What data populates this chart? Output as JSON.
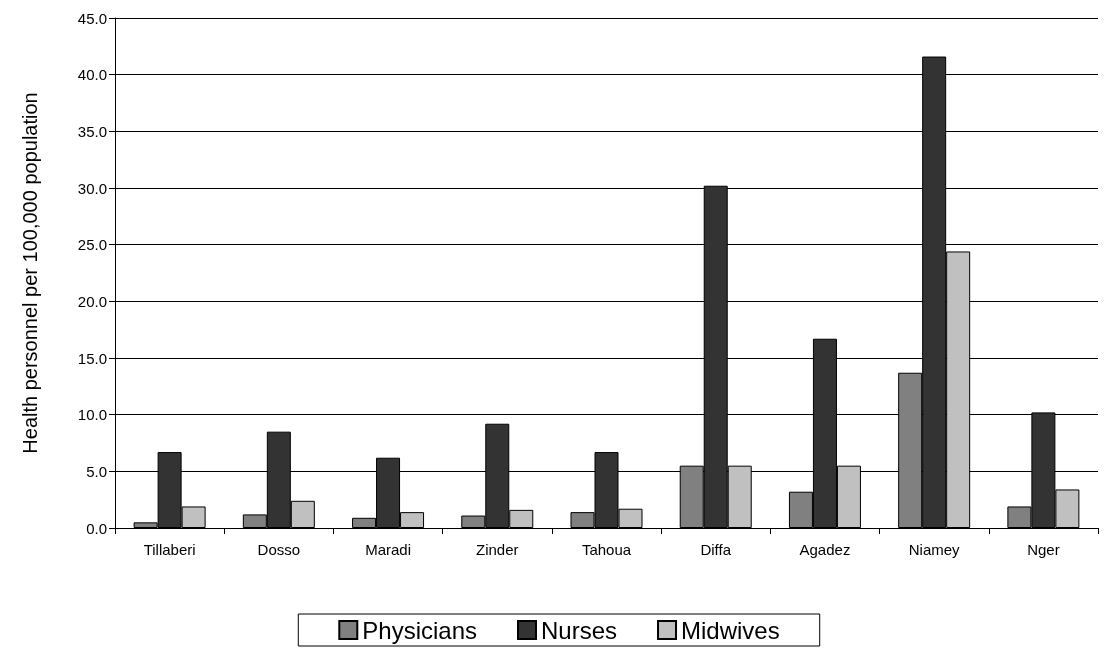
{
  "chart_data": {
    "type": "bar",
    "ylabel": "Health personnel per 100,000 population",
    "categories": [
      "Tillaberi",
      "Dosso",
      "Maradi",
      "Zinder",
      "Tahoua",
      "Diffa",
      "Agadez",
      "Niamey",
      "Nger"
    ],
    "series": [
      {
        "name": "Physicians",
        "color": "#808080",
        "values": [
          0.5,
          1.2,
          0.9,
          1.1,
          1.4,
          5.5,
          3.2,
          13.7,
          1.9
        ]
      },
      {
        "name": "Nurses",
        "color": "#333333",
        "values": [
          6.7,
          8.5,
          6.2,
          9.2,
          6.7,
          30.2,
          16.7,
          41.6,
          10.2
        ]
      },
      {
        "name": "Midwives",
        "color": "#c0c0c0",
        "values": [
          1.9,
          2.4,
          1.4,
          1.6,
          1.7,
          5.5,
          5.5,
          24.4,
          3.4
        ]
      }
    ],
    "ylim": [
      0,
      45
    ],
    "yticks": [
      {
        "value": 0,
        "label": "0.0"
      },
      {
        "value": 5,
        "label": "5.0"
      },
      {
        "value": 10,
        "label": "10.0"
      },
      {
        "value": 15,
        "label": "15.0"
      },
      {
        "value": 20,
        "label": "20.0"
      },
      {
        "value": 25,
        "label": "25.0"
      },
      {
        "value": 30,
        "label": "30.0"
      },
      {
        "value": 35,
        "label": "35.0"
      },
      {
        "value": 40,
        "label": "40.0"
      },
      {
        "value": 45,
        "label": "45.0"
      }
    ],
    "grid": "y",
    "legend": "bottom"
  }
}
